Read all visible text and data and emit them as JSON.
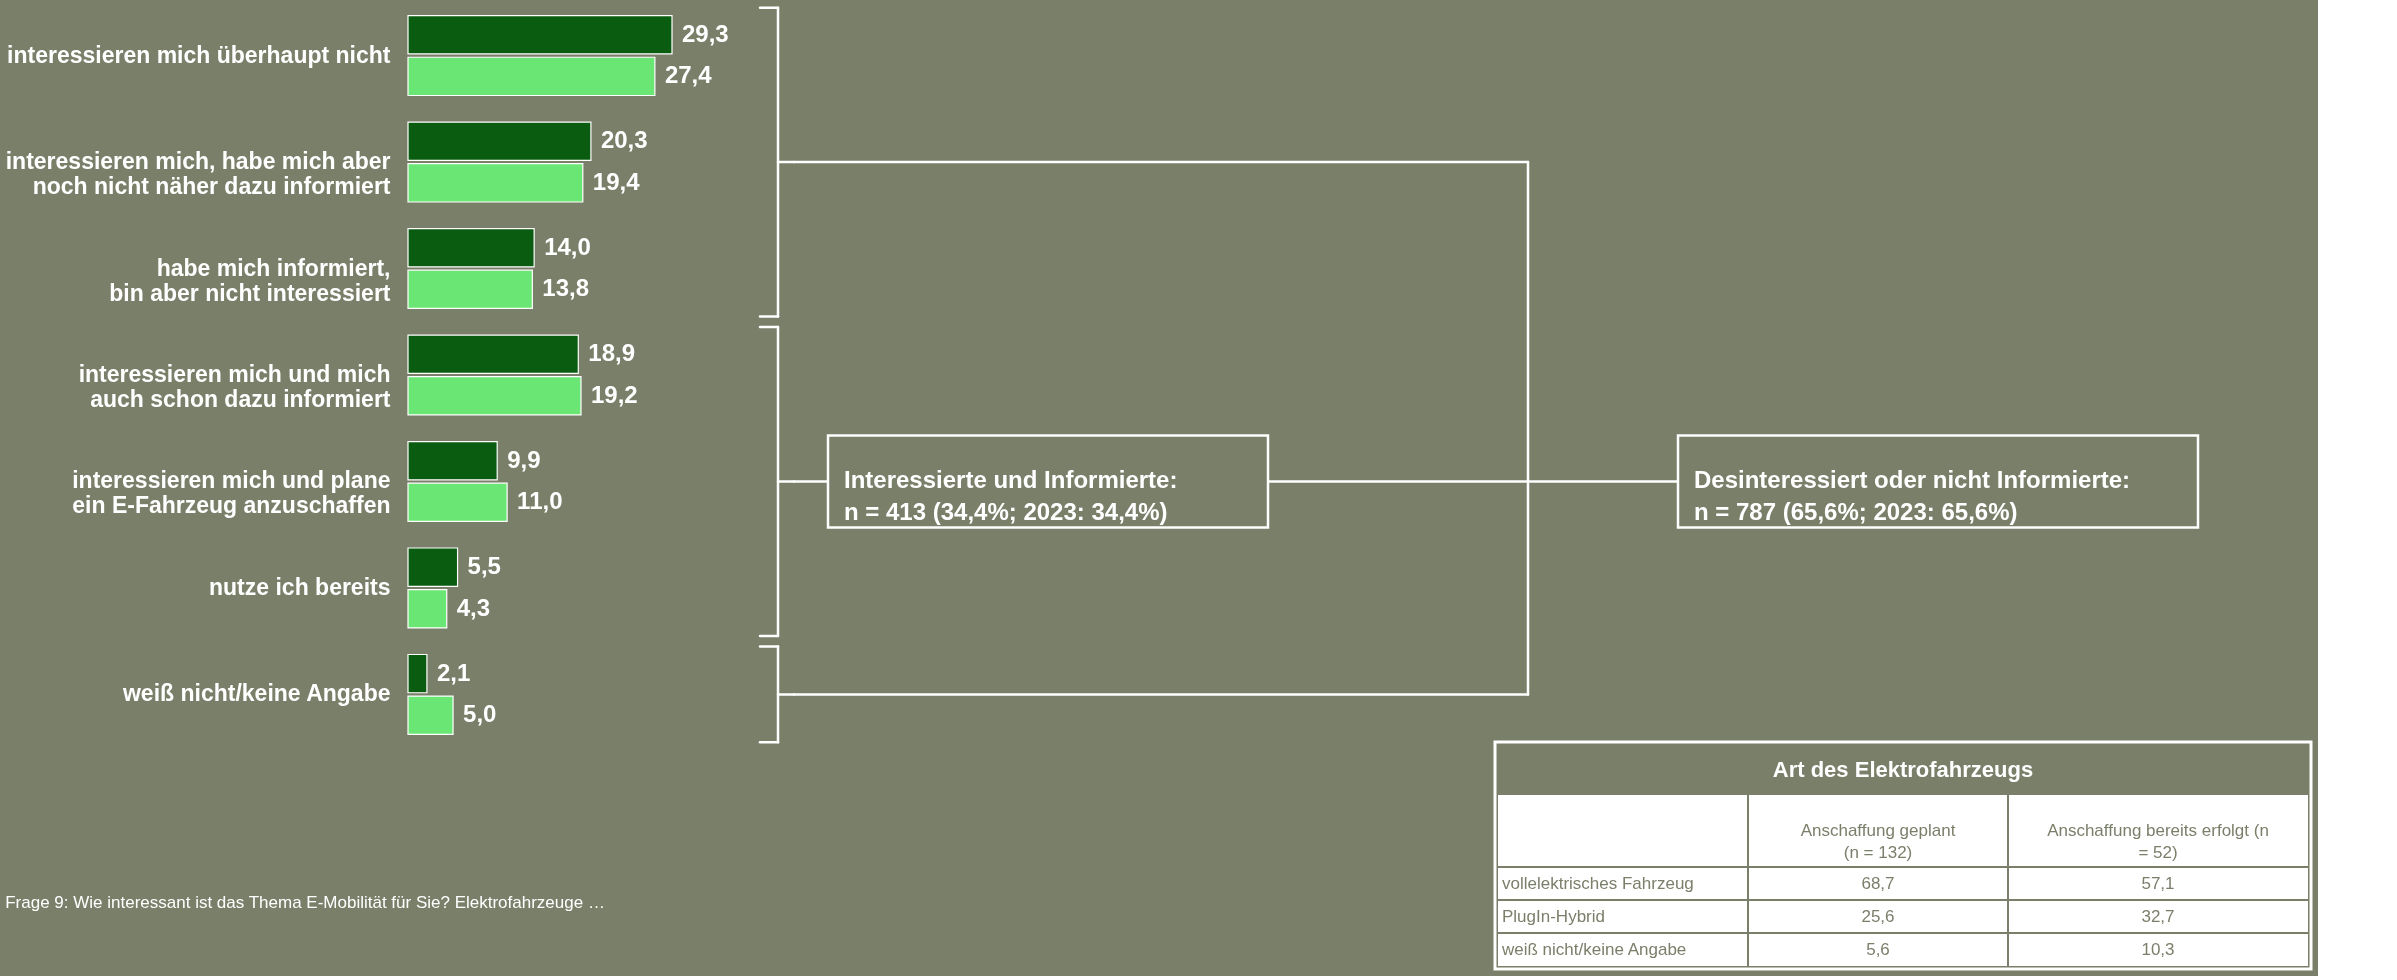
{
  "chart_data": {
    "type": "bar",
    "orientation": "horizontal",
    "categories": [
      "interessieren mich überhaupt nicht",
      "interessieren mich, habe mich aber\nnoch nicht näher dazu informiert",
      "habe mich informiert,\nbin aber nicht interessiert",
      "interessieren mich und mich\nauch schon dazu informiert",
      "interessieren mich und plane\nein E-Fahrzeug anzuschaffen",
      "nutze ich bereits",
      "weiß nicht/keine Angabe"
    ],
    "series": [
      {
        "color": "#0a5c10",
        "values": [
          29.3,
          20.3,
          14.0,
          18.9,
          9.9,
          5.5,
          2.1
        ],
        "value_labels": [
          "29,3",
          "20,3",
          "14,0",
          "18,9",
          "9,9",
          "5,5",
          "2,1"
        ]
      },
      {
        "color": "#6ae675",
        "values": [
          27.4,
          19.4,
          13.8,
          19.2,
          11.0,
          4.3,
          5.0
        ],
        "value_labels": [
          "27,4",
          "19,4",
          "13,8",
          "19,2",
          "11,0",
          "4,3",
          "5,0"
        ]
      }
    ],
    "annotations": [
      "Interessierte und Informierte:\nn = 413 (34,4%; 2023: 34,4%)",
      "Desinteressiert oder nicht Informierte:\nn = 787 (65,6%; 2023: 65,6%)",
      "Frage 9: Wie interessant ist das Thema E-Mobilität für Sie? Elektrofahrzeuge …",
      "Art des Elektrofahrzeugs",
      "Anschaffung geplant\n(n = 132)",
      "Anschaffung bereits erfolgt (n\n= 52)",
      "vollelektrisches Fahrzeug",
      "68,7",
      "57,1",
      "PlugIn-Hybrid",
      "25,6",
      "32,7",
      "weiß nicht/keine Angabe",
      "5,6",
      "10,3"
    ]
  }
}
